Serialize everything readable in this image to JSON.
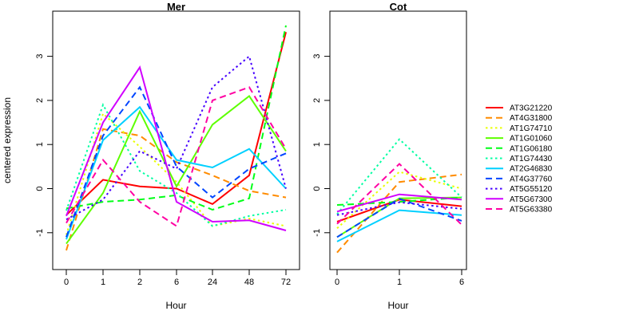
{
  "chart_data": {
    "type": "line",
    "ylabel": "centered expression",
    "xlabel": "Hour",
    "y_ticks": [
      "3",
      "2",
      "1",
      "0",
      "-1"
    ],
    "y_tick_values": [
      3,
      2,
      1,
      0,
      -1
    ],
    "ylim": [
      -1.84,
      4.02
    ],
    "grid": "off",
    "legend_position": "right",
    "panels": [
      {
        "id": "mer",
        "title": "Mer",
        "x_ticklabels": [
          "0",
          "1",
          "2",
          "6",
          "24",
          "48",
          "72"
        ]
      },
      {
        "id": "cot",
        "title": "Cot",
        "x_ticklabels": [
          "0",
          "1",
          "6"
        ]
      }
    ],
    "series": [
      {
        "name": "AT3G21220",
        "color": "#FF0000",
        "linetype": "solid",
        "mer": [
          -0.6,
          0.2,
          0.05,
          0.0,
          -0.35,
          0.3,
          3.55
        ],
        "cot": [
          -0.75,
          -0.25,
          -0.4
        ]
      },
      {
        "name": "AT4G31800",
        "color": "#FF8B00",
        "linetype": "dashed",
        "mer": [
          -1.4,
          1.35,
          1.2,
          0.6,
          0.3,
          -0.05,
          -0.2
        ],
        "cot": [
          -1.45,
          0.15,
          0.32
        ]
      },
      {
        "name": "AT1G74710",
        "color": "#E8FF00",
        "linetype": "dotted",
        "mer": [
          -1.05,
          1.7,
          0.95,
          0.15,
          -0.85,
          -0.68,
          -0.85
        ],
        "cot": [
          -0.9,
          0.38,
          0.0
        ]
      },
      {
        "name": "AT1G01060",
        "color": "#5DFF00",
        "linetype": "solid",
        "mer": [
          -1.25,
          -0.1,
          1.75,
          0.05,
          1.45,
          2.1,
          0.85
        ],
        "cot": [
          -1.1,
          -0.22,
          -0.2
        ]
      },
      {
        "name": "AT1G06180",
        "color": "#00FF17",
        "linetype": "dashed",
        "mer": [
          -0.45,
          -0.3,
          -0.25,
          -0.15,
          -0.48,
          -0.22,
          3.7
        ],
        "cot": [
          -0.37,
          -0.3,
          -0.2
        ]
      },
      {
        "name": "AT1G74430",
        "color": "#00FFA2",
        "linetype": "dotted",
        "mer": [
          -0.5,
          1.9,
          0.4,
          -0.1,
          -0.85,
          -0.62,
          -0.48
        ],
        "cot": [
          -0.58,
          1.12,
          -0.2
        ]
      },
      {
        "name": "AT2G46830",
        "color": "#00D0FF",
        "linetype": "solid",
        "mer": [
          -1.15,
          1.1,
          1.85,
          0.65,
          0.48,
          0.9,
          0.0
        ],
        "cot": [
          -1.2,
          -0.49,
          -0.6
        ]
      },
      {
        "name": "AT4G37760",
        "color": "#0045FF",
        "linetype": "dashed",
        "mer": [
          -1.1,
          1.2,
          2.3,
          0.5,
          -0.2,
          0.45,
          0.8
        ],
        "cot": [
          -1.1,
          -0.23,
          -0.73
        ]
      },
      {
        "name": "AT5G55120",
        "color": "#4600FF",
        "linetype": "dotted",
        "mer": [
          -0.7,
          -0.25,
          0.85,
          0.45,
          2.3,
          3.0,
          0.0
        ],
        "cot": [
          -0.6,
          -0.31,
          -0.46
        ]
      },
      {
        "name": "AT5G67300",
        "color": "#D100FF",
        "linetype": "solid",
        "mer": [
          -0.62,
          1.5,
          2.75,
          -0.3,
          -0.75,
          -0.72,
          -0.95
        ],
        "cot": [
          -0.52,
          -0.13,
          -0.25
        ]
      },
      {
        "name": "AT5G63380",
        "color": "#FF00A2",
        "linetype": "dashed",
        "mer": [
          -0.78,
          0.65,
          -0.3,
          -0.85,
          2.0,
          2.3,
          0.9
        ],
        "cot": [
          -0.8,
          0.56,
          -0.82
        ]
      }
    ]
  }
}
